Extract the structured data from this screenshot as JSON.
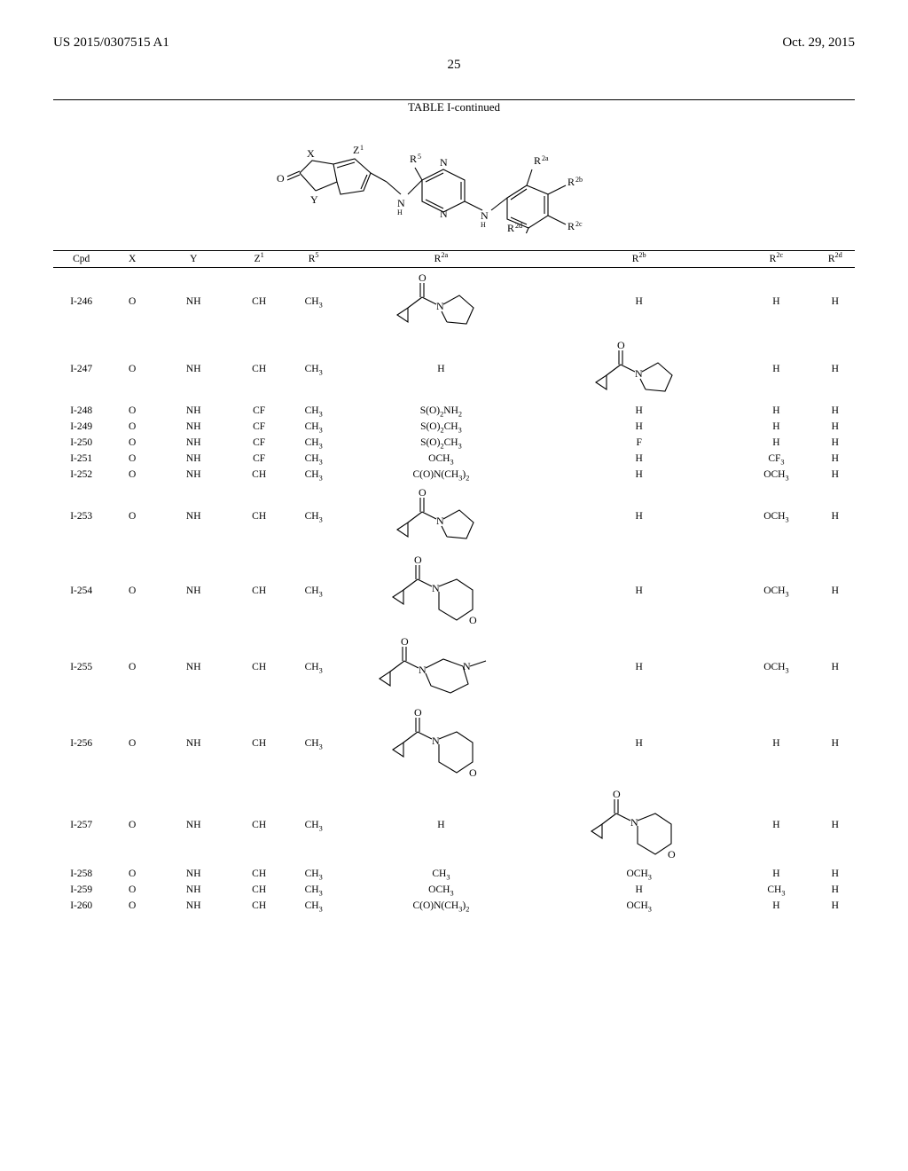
{
  "header": {
    "patent_number": "US 2015/0307515 A1",
    "date": "Oct. 29, 2015",
    "page_number": "25"
  },
  "table": {
    "caption": "TABLE I-continued",
    "columns": {
      "cpd": "Cpd",
      "x": "X",
      "y": "Y",
      "z1_html": "Z<sup>1</sup>",
      "r5_html": "R<sup>5</sup>",
      "r2a_html": "R<sup>2a</sup>",
      "r2b_html": "R<sup>2b</sup>",
      "r2c_html": "R<sup>2c</sup>",
      "r2d_html": "R<sup>2d</sup>"
    },
    "structure_labels": {
      "x": "X",
      "y": "Y",
      "z1": "Z¹",
      "r5": "R⁵",
      "r2a": "R²ᵃ",
      "r2b": "R²ᵇ",
      "r2c": "R²ᶜ",
      "r2d": "R²ᵈ",
      "o_eq": "O"
    },
    "rows": [
      {
        "cpd": "I-246",
        "x": "O",
        "y": "NH",
        "z1": "CH",
        "r5_html": "CH<sub>3</sub>",
        "r2a_type": "svg_pyrrolidine",
        "r2b_type": "text",
        "r2b_html": "H",
        "r2c_html": "H",
        "r2d_html": "H",
        "tall": true
      },
      {
        "cpd": "I-247",
        "x": "O",
        "y": "NH",
        "z1": "CH",
        "r5_html": "CH<sub>3</sub>",
        "r2a_type": "text",
        "r2a_html": "H",
        "r2b_type": "svg_pyrrolidine",
        "r2c_html": "H",
        "r2d_html": "H",
        "tall": true
      },
      {
        "cpd": "I-248",
        "x": "O",
        "y": "NH",
        "z1": "CF",
        "r5_html": "CH<sub>3</sub>",
        "r2a_type": "text",
        "r2a_html": "S(O)<sub>2</sub>NH<sub>2</sub>",
        "r2b_type": "text",
        "r2b_html": "H",
        "r2c_html": "H",
        "r2d_html": "H"
      },
      {
        "cpd": "I-249",
        "x": "O",
        "y": "NH",
        "z1": "CF",
        "r5_html": "CH<sub>3</sub>",
        "r2a_type": "text",
        "r2a_html": "S(O)<sub>2</sub>CH<sub>3</sub>",
        "r2b_type": "text",
        "r2b_html": "H",
        "r2c_html": "H",
        "r2d_html": "H"
      },
      {
        "cpd": "I-250",
        "x": "O",
        "y": "NH",
        "z1": "CF",
        "r5_html": "CH<sub>3</sub>",
        "r2a_type": "text",
        "r2a_html": "S(O)<sub>2</sub>CH<sub>3</sub>",
        "r2b_type": "text",
        "r2b_html": "F",
        "r2c_html": "H",
        "r2d_html": "H"
      },
      {
        "cpd": "I-251",
        "x": "O",
        "y": "NH",
        "z1": "CF",
        "r5_html": "CH<sub>3</sub>",
        "r2a_type": "text",
        "r2a_html": "OCH<sub>3</sub>",
        "r2b_type": "text",
        "r2b_html": "H",
        "r2c_html": "CF<sub>3</sub>",
        "r2d_html": "H"
      },
      {
        "cpd": "I-252",
        "x": "O",
        "y": "NH",
        "z1": "CH",
        "r5_html": "CH<sub>3</sub>",
        "r2a_type": "text",
        "r2a_html": "C(O)N(CH<sub>3</sub>)<sub>2</sub>",
        "r2b_type": "text",
        "r2b_html": "H",
        "r2c_html": "OCH<sub>3</sub>",
        "r2d_html": "H"
      },
      {
        "cpd": "I-253",
        "x": "O",
        "y": "NH",
        "z1": "CH",
        "r5_html": "CH<sub>3</sub>",
        "r2a_type": "svg_pyrrolidine",
        "r2b_type": "text",
        "r2b_html": "H",
        "r2c_html": "OCH<sub>3</sub>",
        "r2d_html": "H",
        "tall": true
      },
      {
        "cpd": "I-254",
        "x": "O",
        "y": "NH",
        "z1": "CH",
        "r5_html": "CH<sub>3</sub>",
        "r2a_type": "svg_morpholine",
        "r2b_type": "text",
        "r2b_html": "H",
        "r2c_html": "OCH<sub>3</sub>",
        "r2d_html": "H",
        "tall": true
      },
      {
        "cpd": "I-255",
        "x": "O",
        "y": "NH",
        "z1": "CH",
        "r5_html": "CH<sub>3</sub>",
        "r2a_type": "svg_n_me_piperazine",
        "r2b_type": "text",
        "r2b_html": "H",
        "r2c_html": "OCH<sub>3</sub>",
        "r2d_html": "H",
        "tall": true
      },
      {
        "cpd": "I-256",
        "x": "O",
        "y": "NH",
        "z1": "CH",
        "r5_html": "CH<sub>3</sub>",
        "r2a_type": "svg_morpholine",
        "r2b_type": "text",
        "r2b_html": "H",
        "r2c_html": "H",
        "r2d_html": "H",
        "tall": true
      },
      {
        "cpd": "I-257",
        "x": "O",
        "y": "NH",
        "z1": "CH",
        "r5_html": "CH<sub>3</sub>",
        "r2a_type": "text",
        "r2a_html": "H",
        "r2b_type": "svg_morpholine",
        "r2c_html": "H",
        "r2d_html": "H",
        "tall": true
      },
      {
        "cpd": "I-258",
        "x": "O",
        "y": "NH",
        "z1": "CH",
        "r5_html": "CH<sub>3</sub>",
        "r2a_type": "text",
        "r2a_html": "CH<sub>3</sub>",
        "r2b_type": "text",
        "r2b_html": "OCH<sub>3</sub>",
        "r2c_html": "H",
        "r2d_html": "H"
      },
      {
        "cpd": "I-259",
        "x": "O",
        "y": "NH",
        "z1": "CH",
        "r5_html": "CH<sub>3</sub>",
        "r2a_type": "text",
        "r2a_html": "OCH<sub>3</sub>",
        "r2b_type": "text",
        "r2b_html": "H",
        "r2c_html": "CH<sub>3</sub>",
        "r2d_html": "H"
      },
      {
        "cpd": "I-260",
        "x": "O",
        "y": "NH",
        "z1": "CH",
        "r5_html": "CH<sub>3</sub>",
        "r2a_type": "text",
        "r2a_html": "C(O)N(CH<sub>3</sub>)<sub>2</sub>",
        "r2b_type": "text",
        "r2b_html": "OCH<sub>3</sub>",
        "r2c_html": "H",
        "r2d_html": "H"
      }
    ]
  },
  "style": {
    "page_bg": "#ffffff",
    "text_color": "#000000",
    "font_family": "Times New Roman",
    "header_fontsize": 15,
    "pagenum_fontsize": 15,
    "caption_fontsize": 13,
    "th_fontsize": 11.5,
    "td_fontsize": 11.5,
    "rule_color": "#000000"
  }
}
